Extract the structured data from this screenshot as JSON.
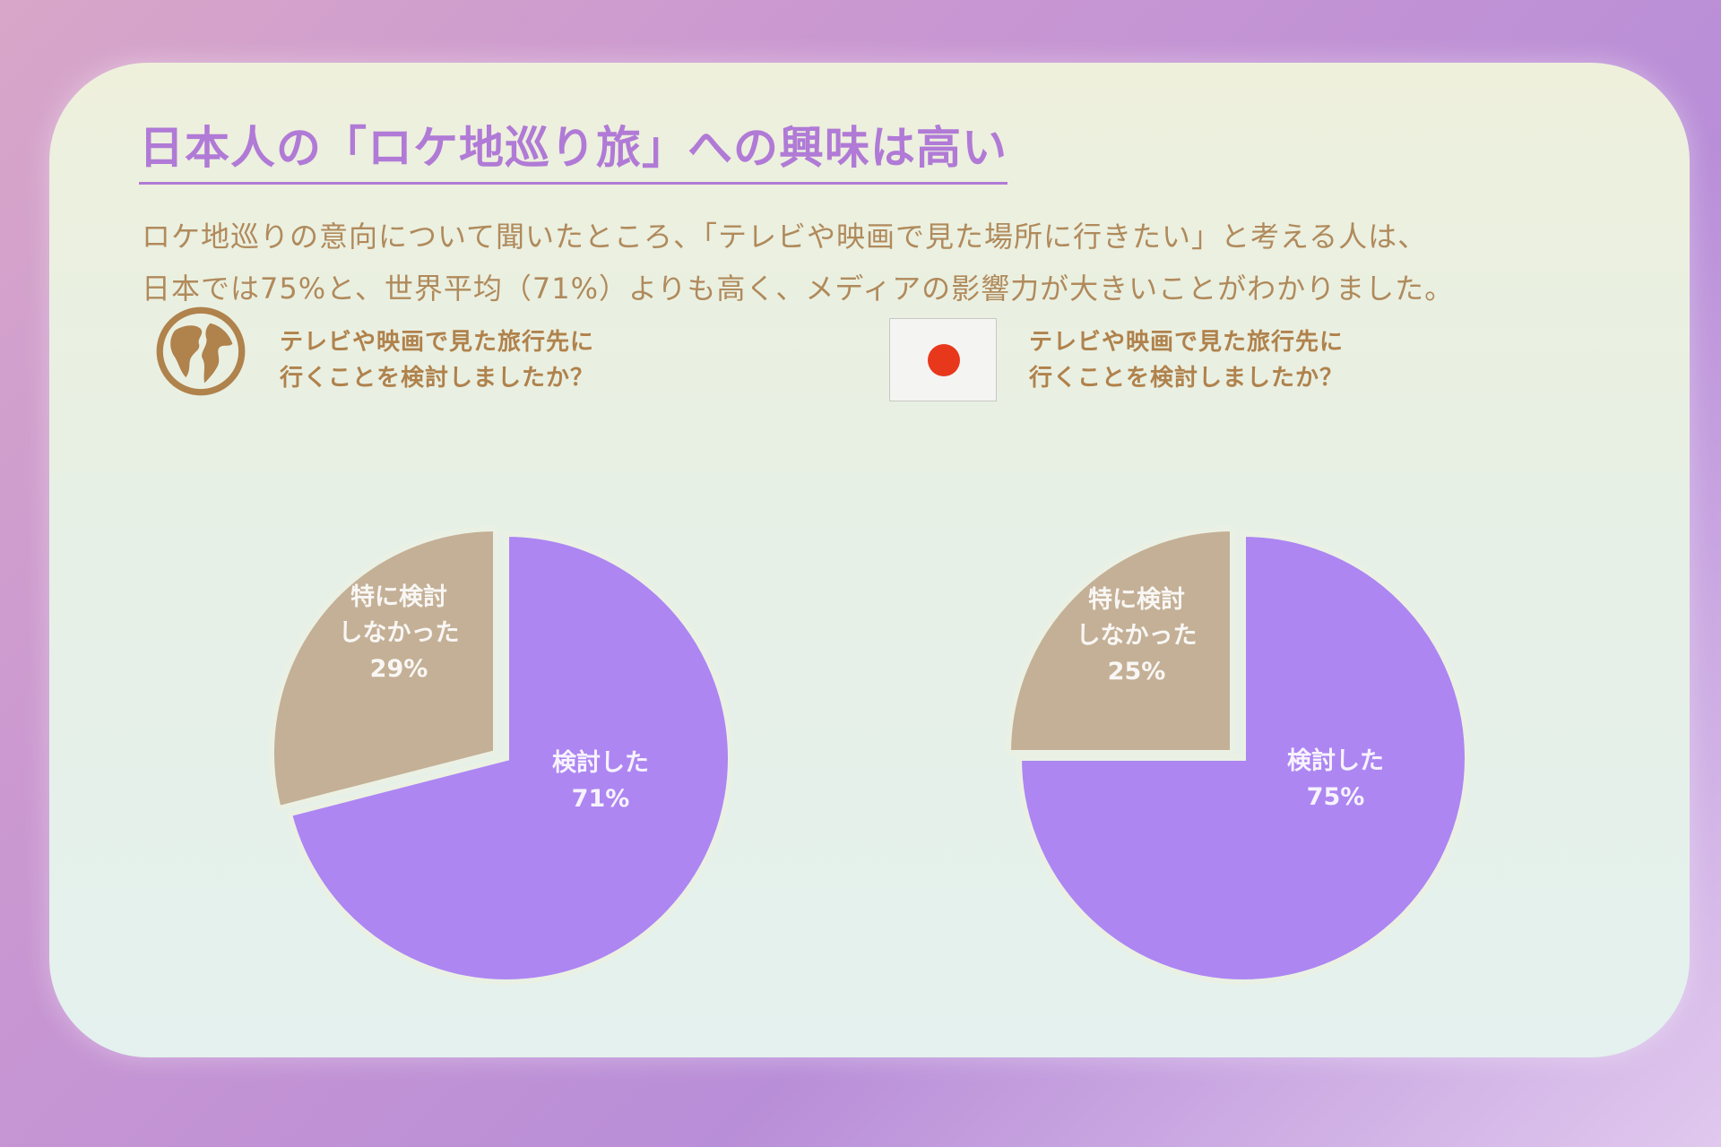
{
  "slide": {
    "title": "日本人の「ロケ地巡り旅」への興味は高い",
    "description_lines": [
      "ロケ地巡りの意向について聞いたところ、「テレビや映画で見た場所に行きたい」と考える人は、",
      "日本では75%と、世界平均（71%）よりも高く、メディアの影響力が大きいことがわかりました。"
    ]
  },
  "panels": [
    {
      "icon": "globe-icon",
      "question_lines": [
        "テレビや映画で見た旅行先に",
        "行くことを検討しましたか？"
      ]
    },
    {
      "icon": "japan-flag-icon",
      "question_lines": [
        "テレビや映画で見た旅行先に",
        "行くことを検討しましたか？"
      ]
    }
  ],
  "colors": {
    "considered": "#ad86f2",
    "not_considered": "#c4b096",
    "title": "#b07ad6",
    "text": "#b08a5c"
  },
  "chart_data": [
    {
      "type": "pie",
      "slices": [
        {
          "label_lines": [
            "検討した",
            "71%"
          ],
          "value": 71
        },
        {
          "label_lines": [
            "特に検討",
            "しなかった",
            "29%"
          ],
          "value": 29
        }
      ]
    },
    {
      "type": "pie",
      "slices": [
        {
          "label_lines": [
            "検討した",
            "75%"
          ],
          "value": 75
        },
        {
          "label_lines": [
            "特に検討",
            "しなかった",
            "25%"
          ],
          "value": 25
        }
      ]
    }
  ]
}
